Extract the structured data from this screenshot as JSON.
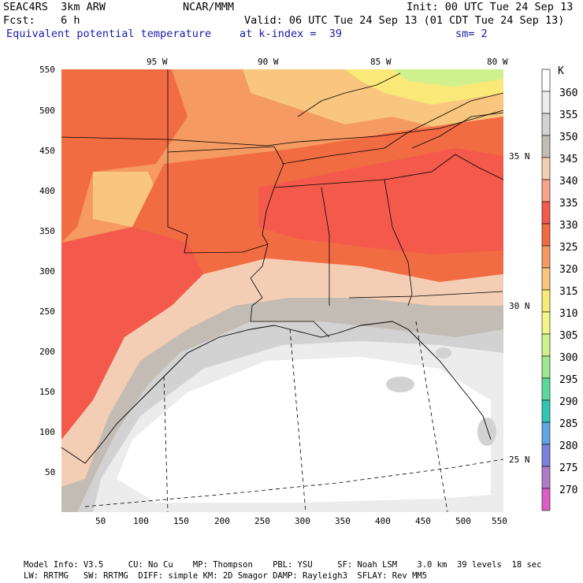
{
  "header": {
    "model": "SEAC4RS  3km ARW",
    "org": "NCAR/MMM",
    "init": "Init: 00 UTC Tue 24 Sep 13",
    "fcst": "Fcst:    6 h",
    "valid": "Valid: 06 UTC Tue 24 Sep 13 (01 CDT Tue 24 Sep 13)",
    "field": "Equivalent potential temperature",
    "level": "at k-index =  39",
    "smooth": "sm= 2"
  },
  "map": {
    "lon_labels": [
      "95 W",
      "90 W",
      "85 W",
      "80 W"
    ],
    "lat_labels": [
      "35 N",
      "30 N",
      "25 N"
    ],
    "y_ticks": [
      "550",
      "500",
      "450",
      "400",
      "350",
      "300",
      "250",
      "200",
      "150",
      "100",
      "50"
    ],
    "x_ticks": [
      "50",
      "100",
      "150",
      "200",
      "250",
      "300",
      "350",
      "400",
      "450",
      "500",
      "550"
    ]
  },
  "colorbar": {
    "unit": "K",
    "levels": [
      "360",
      "355",
      "350",
      "345",
      "340",
      "335",
      "330",
      "325",
      "320",
      "315",
      "310",
      "305",
      "300",
      "295",
      "290",
      "285",
      "280",
      "275",
      "270"
    ],
    "colors": [
      "#ffffff",
      "#ececec",
      "#d2d2d2",
      "#c2bcb4",
      "#f4ceb4",
      "#f7a487",
      "#f35a4b",
      "#f26c43",
      "#f49a62",
      "#f8c67e",
      "#fae878",
      "#f2f688",
      "#cff08c",
      "#9be88f",
      "#5dd89c",
      "#2fc6b6",
      "#5fa6e2",
      "#7c82da",
      "#b27bc6",
      "#dc5ec4"
    ]
  },
  "footer": {
    "line1": "Model Info: V3.5     CU: No Cu    MP: Thompson    PBL: YSU     SF: Noah LSM    3.0 km  39 levels  18 sec",
    "line2": "LW: RRTMG   SW: RRTMG  DIFF: simple KM: 2D Smagor DAMP: Rayleigh3  SFLAY: Rev MM5"
  }
}
